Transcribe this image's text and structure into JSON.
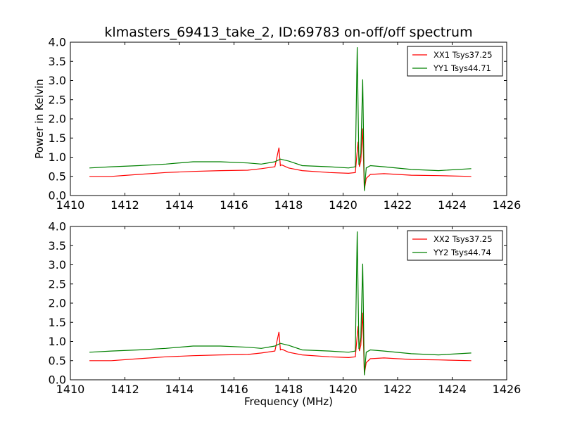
{
  "chart_data": {
    "type": "line",
    "title": "klmasters_69413_take_2, ID:69783 on-off/off spectrum",
    "xlabel": "Frequency (MHz)",
    "ylabel": "Power in Kelvin",
    "xlim": [
      1410,
      1426
    ],
    "ylim": [
      0.0,
      4.0
    ],
    "x_ticks": [
      "1410",
      "1412",
      "1414",
      "1416",
      "1418",
      "1420",
      "1422",
      "1424",
      "1426"
    ],
    "y_ticks": [
      "0.0",
      "0.5",
      "1.0",
      "1.5",
      "2.0",
      "2.5",
      "3.0",
      "3.5",
      "4.0"
    ],
    "grid": false,
    "legend_position": "top-right",
    "colors": {
      "red": "#ff0000",
      "green": "#008000"
    },
    "panels": [
      {
        "series": [
          {
            "name": "XX1 Tsys37.25",
            "color": "#ff0000",
            "x": [
              1410.7,
              1411.5,
              1412.5,
              1413.5,
              1414.5,
              1415.5,
              1416.5,
              1417.0,
              1417.5,
              1417.65,
              1417.7,
              1417.75,
              1418.0,
              1418.5,
              1419.5,
              1420.2,
              1420.45,
              1420.55,
              1420.6,
              1420.65,
              1420.72,
              1420.78,
              1420.85,
              1421.0,
              1421.5,
              1422.5,
              1423.5,
              1424.7
            ],
            "y": [
              0.5,
              0.5,
              0.55,
              0.6,
              0.63,
              0.65,
              0.66,
              0.7,
              0.75,
              1.25,
              0.78,
              0.8,
              0.72,
              0.65,
              0.6,
              0.58,
              0.6,
              1.4,
              0.75,
              0.9,
              1.75,
              0.15,
              0.45,
              0.55,
              0.57,
              0.53,
              0.52,
              0.5
            ]
          },
          {
            "name": "YY1 Tsys44.71",
            "color": "#008000",
            "x": [
              1410.7,
              1411.5,
              1412.5,
              1413.5,
              1414.5,
              1415.5,
              1416.5,
              1417.0,
              1417.5,
              1417.7,
              1418.0,
              1418.5,
              1419.5,
              1420.2,
              1420.45,
              1420.52,
              1420.58,
              1420.65,
              1420.72,
              1420.78,
              1420.85,
              1421.0,
              1421.5,
              1422.5,
              1423.5,
              1424.7
            ],
            "y": [
              0.72,
              0.75,
              0.78,
              0.82,
              0.88,
              0.88,
              0.85,
              0.82,
              0.88,
              0.95,
              0.9,
              0.78,
              0.75,
              0.72,
              0.75,
              3.87,
              0.8,
              1.1,
              3.03,
              0.12,
              0.72,
              0.78,
              0.75,
              0.68,
              0.65,
              0.7
            ]
          }
        ]
      },
      {
        "series": [
          {
            "name": "XX2 Tsys37.25",
            "color": "#ff0000",
            "x": [
              1410.7,
              1411.5,
              1412.5,
              1413.5,
              1414.5,
              1415.5,
              1416.5,
              1417.0,
              1417.5,
              1417.65,
              1417.7,
              1417.75,
              1418.0,
              1418.5,
              1419.5,
              1420.2,
              1420.45,
              1420.55,
              1420.6,
              1420.65,
              1420.72,
              1420.78,
              1420.85,
              1421.0,
              1421.5,
              1422.5,
              1423.5,
              1424.7
            ],
            "y": [
              0.5,
              0.5,
              0.55,
              0.6,
              0.63,
              0.65,
              0.66,
              0.7,
              0.75,
              1.25,
              0.78,
              0.8,
              0.72,
              0.65,
              0.6,
              0.58,
              0.6,
              1.4,
              0.75,
              0.9,
              1.75,
              0.15,
              0.45,
              0.55,
              0.57,
              0.53,
              0.52,
              0.5
            ]
          },
          {
            "name": "YY2 Tsys44.74",
            "color": "#008000",
            "x": [
              1410.7,
              1411.5,
              1412.5,
              1413.5,
              1414.5,
              1415.5,
              1416.5,
              1417.0,
              1417.5,
              1417.7,
              1418.0,
              1418.5,
              1419.5,
              1420.2,
              1420.45,
              1420.52,
              1420.58,
              1420.65,
              1420.72,
              1420.78,
              1420.85,
              1421.0,
              1421.5,
              1422.5,
              1423.5,
              1424.7
            ],
            "y": [
              0.72,
              0.75,
              0.78,
              0.82,
              0.88,
              0.88,
              0.85,
              0.82,
              0.88,
              0.95,
              0.9,
              0.78,
              0.75,
              0.72,
              0.75,
              3.87,
              0.8,
              1.1,
              3.03,
              0.12,
              0.72,
              0.78,
              0.75,
              0.68,
              0.65,
              0.7
            ]
          }
        ]
      }
    ]
  }
}
